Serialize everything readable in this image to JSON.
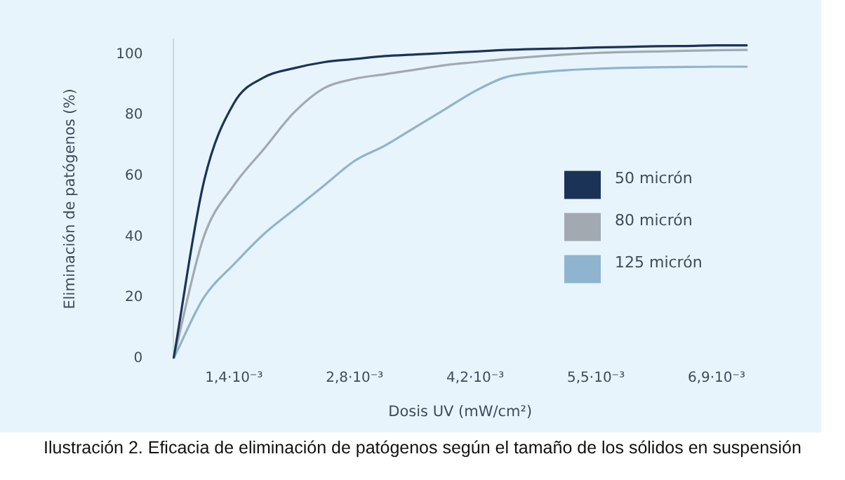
{
  "chart_data": {
    "type": "line",
    "xlabel": "Dosis UV (mW/cm²)",
    "ylabel": "Eliminación de patógenos (%)",
    "categories": [
      null,
      null,
      "1,4·10⁻³",
      null,
      null,
      null,
      "2,8·10⁻³",
      null,
      null,
      null,
      "4,2·10⁻³",
      null,
      null,
      null,
      "5,5·10⁻³",
      null,
      null,
      null,
      "6,9·10⁻³",
      null
    ],
    "ylim": [
      0,
      105
    ],
    "yticks": [
      0,
      20,
      40,
      60,
      80,
      100
    ],
    "grid": false,
    "legend": "right",
    "marker": "none",
    "line_style": "solid",
    "series": [
      {
        "name": "50 micrón",
        "color": "#1c3358",
        "values": [
          0,
          58,
          84,
          92.5,
          95.5,
          97.5,
          98.5,
          99.5,
          100,
          100.5,
          101,
          101.5,
          101.8,
          102,
          102.3,
          102.5,
          102.7,
          102.8,
          103,
          103
        ]
      },
      {
        "name": "80 micrón",
        "color": "#a2a9b1",
        "values": [
          0,
          40,
          57,
          69,
          81,
          89,
          92,
          93.5,
          95,
          96.5,
          97.5,
          98.5,
          99.3,
          100,
          100.5,
          100.8,
          101,
          101.2,
          101.4,
          101.5
        ]
      },
      {
        "name": "125 micrón",
        "color": "#8fb4cf",
        "values": [
          0,
          20,
          31,
          41,
          49,
          57,
          65,
          70,
          76,
          82,
          88,
          92.5,
          94,
          94.8,
          95.3,
          95.6,
          95.8,
          95.9,
          96,
          96
        ]
      }
    ],
    "annotations": [
      "Ilustración 2. Eficacia de eliminación de patógenos según el tamaño de los sólidos en suspensión"
    ]
  }
}
